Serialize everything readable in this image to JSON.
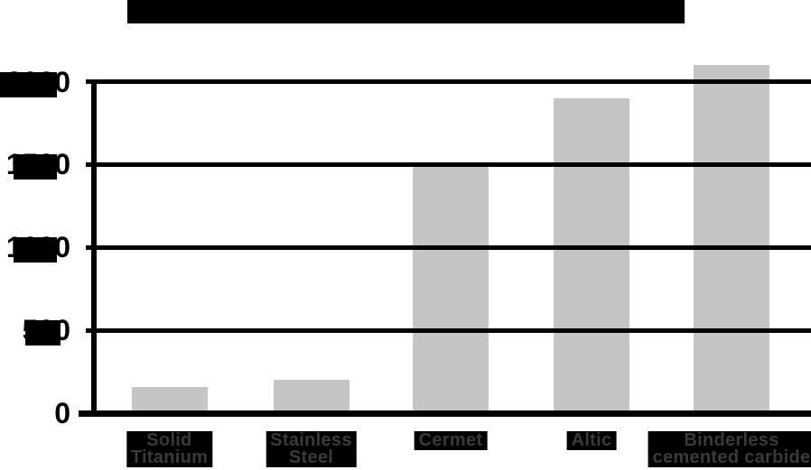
{
  "title": {
    "text": "",
    "redacted": true
  },
  "chart_data": {
    "type": "bar",
    "title": "",
    "title_redacted": true,
    "categories": [
      "Solid Titanium",
      "Stainless Steel",
      "Cermet",
      "Altic",
      "Binderless cemented carbide"
    ],
    "category_lines": [
      [
        "Solid",
        "Titanium"
      ],
      [
        "Stainless",
        "Steel"
      ],
      [
        "Cermet"
      ],
      [
        "Altic"
      ],
      [
        "Binderless",
        "cemented carbide"
      ]
    ],
    "values": [
      160,
      200,
      1500,
      1900,
      2100
    ],
    "xlabel": "",
    "ylabel": "",
    "ylim": [
      0,
      2100
    ],
    "grid": true,
    "legend_position": "none",
    "y_ticks": [
      {
        "value": 0,
        "label": "0",
        "redacted": false,
        "visible_fragment": "0"
      },
      {
        "value": 500,
        "label": "500",
        "redacted": true,
        "visible_fragment": "5…0"
      },
      {
        "value": 1000,
        "label": "1000",
        "redacted": true,
        "visible_fragment": "1…0"
      },
      {
        "value": 1500,
        "label": "1500",
        "redacted": true,
        "visible_fragment": "1…0"
      },
      {
        "value": 2000,
        "label": "2000",
        "redacted": true,
        "visible_fragment": "…0"
      }
    ]
  },
  "colors": {
    "background": "#ffffff",
    "bar_fill": "#c5c5c5",
    "axis_and_grid": "#000000",
    "redaction_box": "#000000",
    "category_label_bg": "#000000",
    "category_label_text": "#3a3a3a",
    "tick_label_text": "#000000"
  }
}
